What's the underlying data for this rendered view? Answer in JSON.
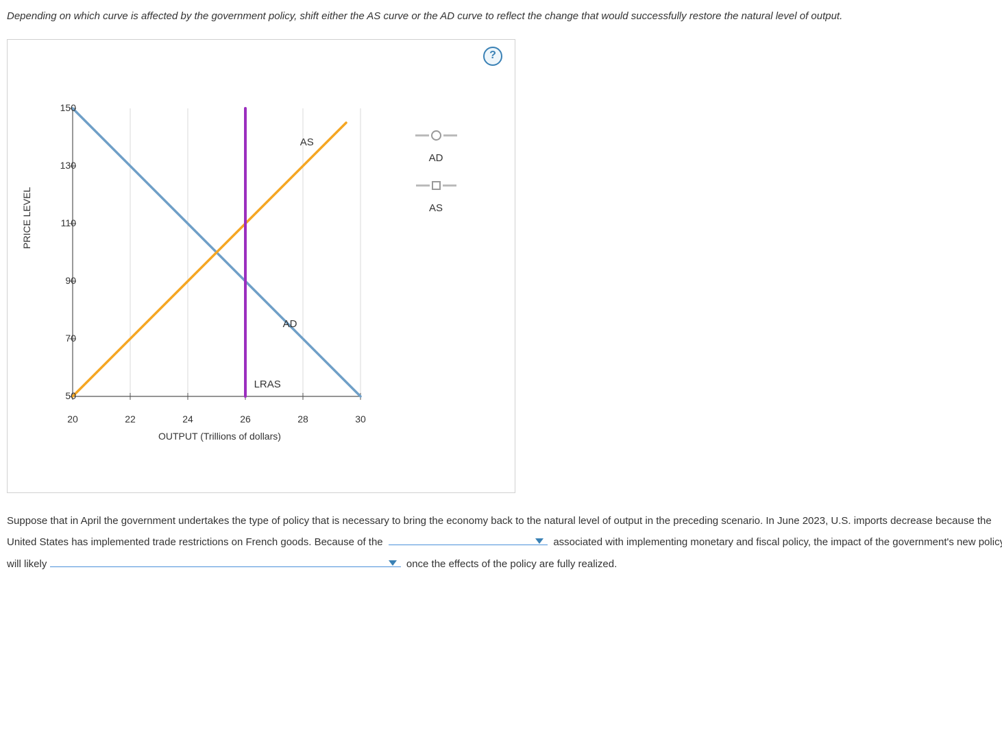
{
  "instruction": "Depending on which curve is affected by the government policy, shift either the AS curve or the AD curve to reflect the change that would successfully restore the natural level of output.",
  "help_label": "?",
  "chart": {
    "type": "line",
    "background_color": "#ffffff",
    "grid_color": "#d9d9d9",
    "axis_color": "#555555",
    "xlim": [
      20,
      30
    ],
    "ylim": [
      50,
      150
    ],
    "xticks": [
      20,
      22,
      24,
      26,
      28,
      30
    ],
    "yticks": [
      50,
      70,
      90,
      110,
      130,
      150
    ],
    "xlabel": "OUTPUT (Trillions of dollars)",
    "ylabel": "PRICE LEVEL",
    "label_fontsize": 14,
    "tick_fontsize": 14,
    "series": {
      "AD": {
        "label": "AD",
        "color": "#6f9fc7",
        "width": 3.5,
        "points": [
          [
            20,
            150
          ],
          [
            30,
            50
          ]
        ],
        "label_pos": [
          27.3,
          75
        ]
      },
      "AS": {
        "label": "AS",
        "color": "#f5a623",
        "width": 3.5,
        "points": [
          [
            20,
            50
          ],
          [
            29.5,
            145
          ]
        ],
        "label_pos": [
          27.9,
          138
        ]
      },
      "LRAS": {
        "label": "LRAS",
        "color": "#9b2fbf",
        "width": 4,
        "points": [
          [
            26,
            50
          ],
          [
            26,
            150
          ]
        ],
        "label_pos": [
          26.3,
          54
        ]
      }
    }
  },
  "legend": {
    "items": [
      {
        "label": "AD",
        "marker": "circle"
      },
      {
        "label": "AS",
        "marker": "square"
      }
    ],
    "line_color": "#bbbbbb",
    "marker_border": "#999999"
  },
  "paragraph": {
    "seg1": "Suppose that in April the government undertakes the type of policy that is necessary to bring the economy back to the natural level of output in the preceding scenario. In June 2023, U.S. imports decrease because the United States has implemented trade restrictions on French goods. Because of the ",
    "seg2": " associated with implementing monetary and fiscal policy, the impact of the government's new policy will likely ",
    "seg3": " once the effects of the policy are fully realized."
  }
}
